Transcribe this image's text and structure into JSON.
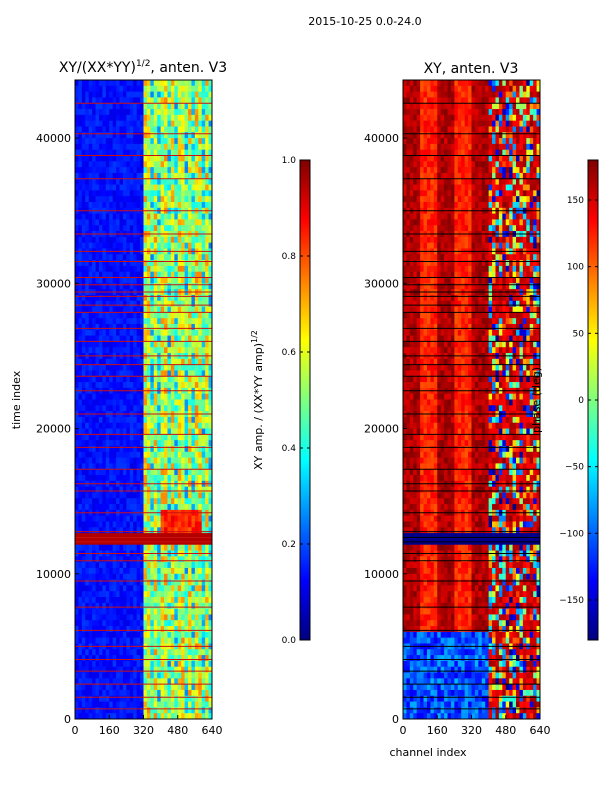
{
  "figure": {
    "suptitle": "2015-10-25 0.0-24.0"
  },
  "colors": {
    "jet": [
      "#00007f",
      "#0000ff",
      "#007fff",
      "#00ffff",
      "#7fff7f",
      "#ffff00",
      "#ff7f00",
      "#ff0000",
      "#7f0000"
    ],
    "flag_line_left": "#cc1010",
    "flag_line_right": "#000000"
  },
  "chart_data": [
    {
      "type": "heatmap",
      "title": "XY/(XX*YY)",
      "title_superscript": "1/2",
      "title_suffix": ", anten. V3",
      "xlabel": "",
      "ylabel": "time index",
      "xlim": [
        0,
        640
      ],
      "ylim": [
        0,
        44000
      ],
      "xticks": [
        0,
        160,
        320,
        480,
        640
      ],
      "yticks": [
        0,
        10000,
        20000,
        30000,
        40000
      ],
      "variable": "normalized XY amplitude",
      "colorbar": {
        "label": "XY amp. / (XX*YY amp)",
        "label_superscript": "1/2",
        "range": [
          0.0,
          1.0
        ],
        "ticks": [
          "0.0",
          "0.2",
          "0.4",
          "0.6",
          "0.8",
          "1.0"
        ],
        "tick_values": [
          0.0,
          0.2,
          0.4,
          0.6,
          0.8,
          1.0
        ]
      },
      "flag_rows": [
        700,
        1500,
        2400,
        3300,
        4100,
        5000,
        6100,
        7700,
        9500,
        10900,
        11400,
        12200,
        12500,
        12900,
        14200,
        15700,
        16200,
        17200,
        18700,
        19600,
        21000,
        22600,
        23600,
        24400,
        25000,
        26000,
        26900,
        28000,
        28500,
        29100,
        29400,
        29900,
        30400,
        31500,
        32200,
        33400,
        35000,
        37200,
        38800,
        40300,
        42400
      ],
      "bands": [
        {
          "x_range": [
            0,
            325
          ],
          "level": 0.12,
          "note": "low amplitude"
        },
        {
          "x_range": [
            325,
            640
          ],
          "level": 0.45,
          "note": "striped higher amplitude"
        },
        {
          "y_range": [
            13000,
            14200
          ],
          "x_range": [
            400,
            600
          ],
          "level": 0.8,
          "note": "bright burst"
        }
      ]
    },
    {
      "type": "heatmap",
      "title": "XY, anten. V3",
      "xlabel": "channel index",
      "ylabel": "",
      "xlim": [
        0,
        640
      ],
      "ylim": [
        0,
        44000
      ],
      "xticks": [
        0,
        160,
        320,
        480,
        640
      ],
      "yticks": [
        0,
        10000,
        20000,
        30000,
        40000
      ],
      "variable": "XY phase",
      "colorbar": {
        "label": "phase (deg)",
        "range": [
          -180,
          180
        ],
        "ticks": [
          "−150",
          "−100",
          "−50",
          "0",
          "50",
          "100",
          "150"
        ],
        "tick_values": [
          -150,
          -100,
          -50,
          0,
          50,
          100,
          150
        ]
      },
      "flag_rows": [
        700,
        1500,
        2400,
        3300,
        4100,
        5000,
        6100,
        7700,
        9500,
        10900,
        11400,
        12200,
        12500,
        12900,
        14200,
        15700,
        16200,
        17200,
        18700,
        19600,
        21000,
        22600,
        23600,
        24400,
        25000,
        26000,
        26900,
        28000,
        28500,
        29100,
        29400,
        29900,
        30400,
        31500,
        32200,
        33400,
        35000,
        37200,
        38800,
        40300,
        42400
      ],
      "bands": [
        {
          "y_range": [
            0,
            6000
          ],
          "x_range": [
            0,
            420
          ],
          "level": -120,
          "note": "blue low-phase region"
        },
        {
          "y_range": [
            6000,
            44000
          ],
          "x_range": [
            0,
            400
          ],
          "level": 140,
          "note": "mostly orange-red"
        },
        {
          "x_range": [
            400,
            640
          ],
          "level": 30,
          "note": "mixed phase wraps"
        }
      ]
    }
  ]
}
